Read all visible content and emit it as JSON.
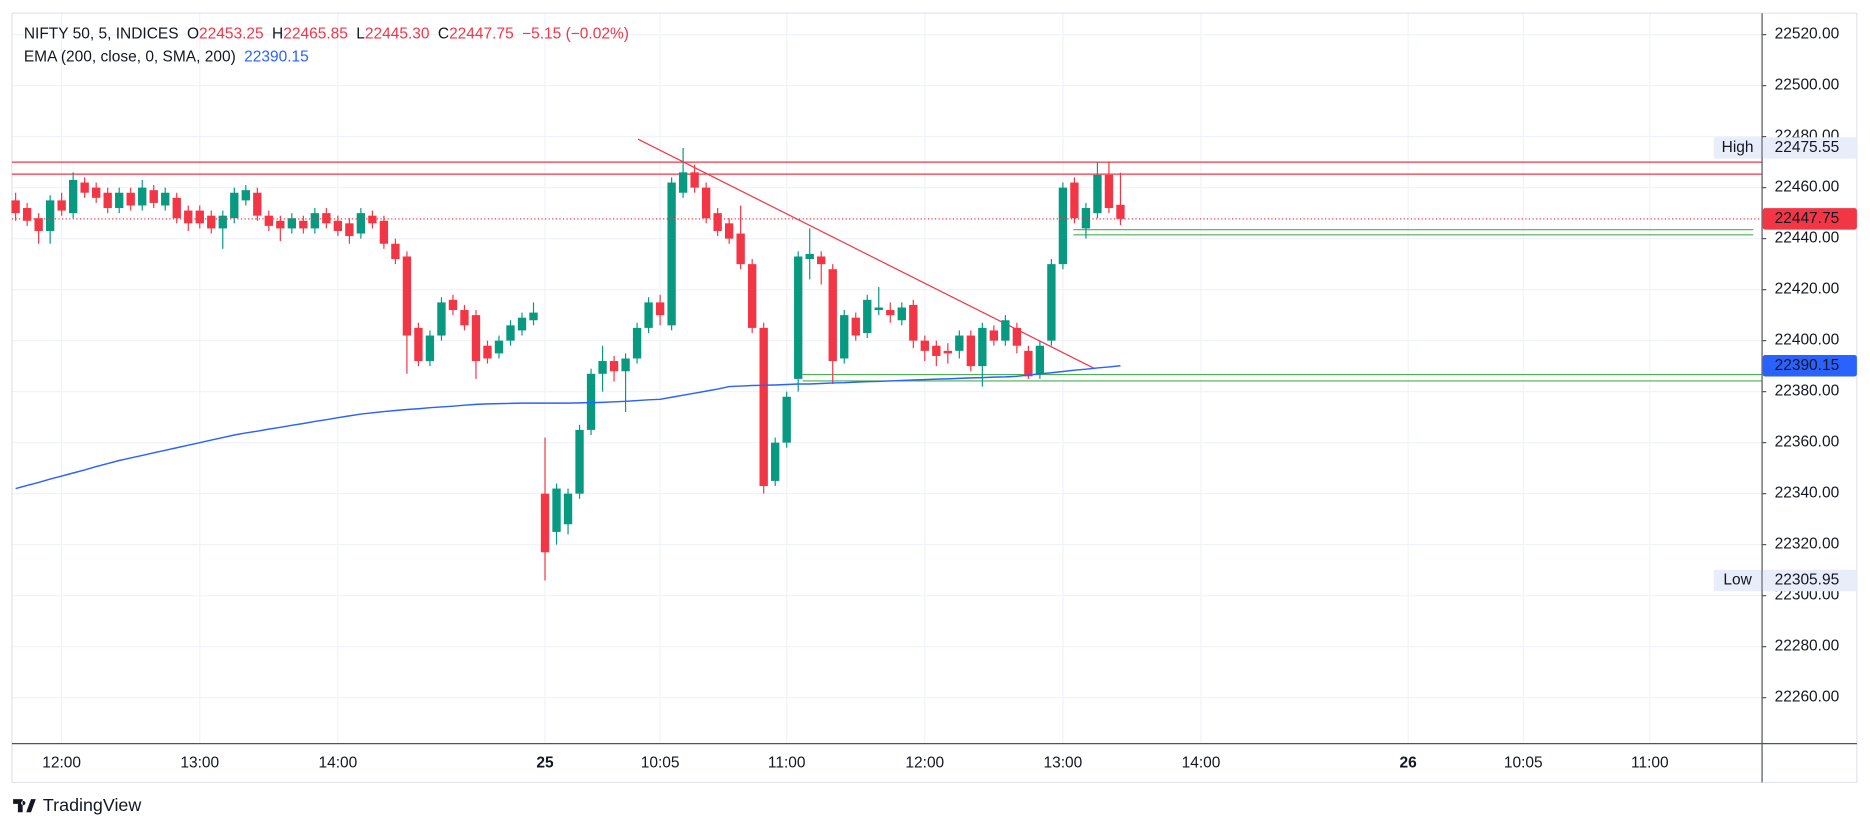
{
  "chart_data": {
    "type": "candlestick",
    "title": "NIFTY 50, 5, INDICES",
    "legend_items": [
      {
        "key": "O",
        "value": "22453.25"
      },
      {
        "key": "H",
        "value": "22465.85"
      },
      {
        "key": "L",
        "value": "22445.30"
      },
      {
        "key": "C",
        "value": "22447.75"
      }
    ],
    "change": "−5.15 (−0.02%)",
    "up_color": "#089981",
    "down_color": "#f23645",
    "categories": [
      null,
      null,
      null,
      null,
      "12:00",
      null,
      null,
      null,
      null,
      null,
      null,
      null,
      null,
      null,
      null,
      null,
      "13:00",
      null,
      null,
      null,
      null,
      null,
      null,
      null,
      null,
      null,
      null,
      null,
      "14:00",
      null,
      null,
      null,
      null,
      null,
      null,
      null,
      null,
      null,
      null,
      null,
      null,
      null,
      null,
      null,
      null,
      null,
      "25",
      null,
      null,
      null,
      null,
      null,
      null,
      null,
      null,
      null,
      "10:05",
      null,
      null,
      null,
      null,
      null,
      null,
      null,
      null,
      null,
      null,
      "11:00",
      null,
      null,
      null,
      null,
      null,
      null,
      null,
      null,
      null,
      null,
      null,
      "12:00",
      null,
      null,
      null,
      null,
      null,
      null,
      null,
      null,
      null,
      null,
      null,
      "13:00",
      null,
      null,
      null,
      null,
      null,
      null,
      null,
      null,
      null,
      null,
      null,
      "14:00",
      null,
      null,
      null,
      null,
      null,
      null,
      null,
      null,
      null,
      null,
      null,
      null,
      null,
      null,
      null,
      null,
      null,
      "26",
      null,
      null,
      null,
      null,
      null,
      null,
      null,
      null,
      null,
      "10:05",
      null,
      null,
      null,
      null,
      null,
      null,
      null,
      null,
      null,
      null,
      "11:00",
      null,
      null,
      null,
      null,
      null,
      null,
      null,
      null,
      null
    ],
    "open": [
      22455,
      22452,
      22448,
      22443,
      22455,
      22450,
      22462,
      22460,
      22458,
      22452,
      22458,
      22453,
      22459,
      22453,
      22456,
      22451,
      22451,
      22449,
      22444,
      22448,
      22455,
      22458,
      22449,
      22447,
      22444,
      22447,
      22444,
      22450,
      22447,
      22446,
      22442,
      22449,
      22447,
      22438,
      22433,
      22405,
      22392,
      22402,
      22416,
      22412,
      22410,
      22398,
      22395,
      22400,
      22404,
      22408,
      22340,
      22325,
      22328,
      22340,
      22365,
      22387,
      22392,
      22388,
      22393,
      22405,
      22415,
      22406,
      22458,
      22466,
      22460,
      22450,
      22446,
      22442,
      22430,
      22405,
      22345,
      22360,
      22385,
      22432,
      22433,
      22428,
      22393,
      22409,
      22403,
      22412,
      22412,
      22408,
      22414,
      22400,
      22398,
      22396,
      22396,
      22402,
      22390,
      22404,
      22400,
      22405,
      22396,
      22387,
      22400,
      22430,
      22462,
      22444,
      22450,
      22465,
      22453.25,
      null,
      null,
      null,
      null,
      null,
      null,
      null,
      null,
      null,
      null,
      null,
      null,
      null,
      null,
      null,
      null,
      null,
      null,
      null,
      null,
      null,
      null,
      null,
      null,
      null,
      null,
      null,
      null,
      null,
      null,
      null,
      null,
      null,
      null,
      null,
      null,
      null,
      null,
      null,
      null,
      null,
      null,
      null,
      null,
      null,
      null,
      null,
      null,
      null,
      null,
      null,
      null,
      null,
      null,
      null
    ],
    "high": [
      22458,
      22454,
      22450,
      22457,
      22458,
      22466,
      22464,
      22462,
      22460,
      22460,
      22460,
      22463,
      22461,
      22460,
      22458,
      22453,
      22453,
      22451,
      22451,
      22460,
      22461,
      22460,
      22451,
      22449,
      22450,
      22449,
      22452,
      22452,
      22449,
      22448,
      22452,
      22451,
      22449,
      22440,
      22435,
      22407,
      22404,
      22417,
      22418,
      22414,
      22412,
      22400,
      22402,
      22408,
      22411,
      22415,
      22362,
      22344,
      22342,
      22367,
      22389,
      22398,
      22394,
      22395,
      22407,
      22417,
      22418,
      22464,
      22475.55,
      22469,
      22462,
      22452,
      22448,
      22453,
      22432,
      22407,
      22362,
      22380,
      22435,
      22444,
      22435,
      22430,
      22412,
      22411,
      22418,
      22421,
      22415,
      22415,
      22416,
      22402,
      22400,
      22399,
      22404,
      22404,
      22407,
      22406,
      22410,
      22407,
      22398,
      22400,
      22432,
      22462,
      22464,
      22454,
      22470,
      22470,
      22465.85,
      null,
      null,
      null,
      null,
      null,
      null,
      null,
      null,
      null,
      null,
      null,
      null,
      null,
      null,
      null,
      null,
      null,
      null,
      null,
      null,
      null,
      null,
      null,
      null,
      null,
      null,
      null,
      null,
      null,
      null,
      null,
      null,
      null,
      null,
      null,
      null,
      null,
      null,
      null,
      null,
      null,
      null,
      null,
      null,
      null,
      null,
      null,
      null,
      null,
      null,
      null,
      null,
      null,
      null,
      null
    ],
    "low": [
      22447,
      22445,
      22438,
      22438,
      22449,
      22448,
      22456,
      22454,
      22450,
      22450,
      22451,
      22451,
      22452,
      22451,
      22446,
      22443,
      22444,
      22442,
      22436,
      22446,
      22453,
      22447,
      22443,
      22439,
      22442,
      22442,
      22442,
      22444,
      22441,
      22438,
      22440,
      22444,
      22436,
      22430,
      22387,
      22390,
      22390,
      22400,
      22410,
      22404,
      22385,
      22391,
      22393,
      22398,
      22402,
      22406,
      22305.95,
      22320,
      22324,
      22338,
      22363,
      22380,
      22384,
      22372,
      22391,
      22403,
      22406,
      22404,
      22456,
      22458,
      22446,
      22441,
      22438,
      22428,
      22403,
      22340,
      22343,
      22358,
      22380,
      22424,
      22422,
      22383,
      22391,
      22400,
      22401,
      22410,
      22407,
      22406,
      22397,
      22392,
      22390,
      22391,
      22393,
      22388,
      22382,
      22398,
      22398,
      22395,
      22385,
      22385,
      22398,
      22428,
      22446,
      22440,
      22448,
      22450,
      22445.3,
      null,
      null,
      null,
      null,
      null,
      null,
      null,
      null,
      null,
      null,
      null,
      null,
      null,
      null,
      null,
      null,
      null,
      null,
      null,
      null,
      null,
      null,
      null,
      null,
      null,
      null,
      null,
      null,
      null,
      null,
      null,
      null,
      null,
      null,
      null,
      null,
      null,
      null,
      null,
      null,
      null,
      null,
      null,
      null,
      null,
      null,
      null,
      null,
      null,
      null,
      null,
      null,
      null,
      null,
      null
    ],
    "close": [
      22450,
      22447,
      22443,
      22455,
      22451,
      22463,
      22458,
      22456,
      22452,
      22458,
      22453,
      22460,
      22454,
      22458,
      22448,
      22446,
      22446,
      22444,
      22449,
      22458,
      22459,
      22449,
      22445,
      22444,
      22448,
      22444,
      22450,
      22446,
      22443,
      22441,
      22450,
      22446,
      22438,
      22432,
      22402,
      22392,
      22402,
      22415,
      22412,
      22406,
      22392,
      22393,
      22400,
      22406,
      22409,
      22411,
      22317,
      22342,
      22340,
      22365,
      22387,
      22392,
      22388,
      22393,
      22405,
      22415,
      22410,
      22462,
      22466,
      22460,
      22448,
      22443,
      22440,
      22430,
      22405,
      22343,
      22360,
      22378,
      22433,
      22434,
      22430,
      22392,
      22410,
      22402,
      22416,
      22413,
      22410,
      22413,
      22400,
      22396,
      22394,
      22395,
      22402,
      22390,
      22405,
      22400,
      22408,
      22398,
      22386,
      22398,
      22430,
      22460,
      22448,
      22452,
      22465,
      22452,
      22447.75,
      null,
      null,
      null,
      null,
      null,
      null,
      null,
      null,
      null,
      null,
      null,
      null,
      null,
      null,
      null,
      null,
      null,
      null,
      null,
      null,
      null,
      null,
      null,
      null,
      null,
      null,
      null,
      null,
      null,
      null,
      null,
      null,
      null,
      null,
      null,
      null,
      null,
      null,
      null,
      null,
      null,
      null,
      null,
      null,
      null,
      null,
      null,
      null,
      null,
      null,
      null,
      null,
      null,
      null,
      null
    ],
    "ema": {
      "name": "EMA (200, close, 0, SMA, 200)",
      "color": "#2962ff",
      "values": [
        22342,
        22343.2,
        22344.4,
        22345.7,
        22346.9,
        22348.1,
        22349.3,
        22350.6,
        22351.8,
        22353,
        22354,
        22355,
        22356,
        22357,
        22358,
        22359,
        22360,
        22361,
        22362,
        22363,
        22363.8,
        22364.5,
        22365.3,
        22366,
        22366.8,
        22367.5,
        22368.3,
        22369,
        22369.8,
        22370.5,
        22371.2,
        22371.7,
        22372.2,
        22372.6,
        22373,
        22373.3,
        22373.7,
        22374,
        22374.3,
        22374.7,
        22375,
        22375.2,
        22375.3,
        22375.4,
        22375.5,
        22375.5,
        22375.5,
        22375.5,
        22375.5,
        22375.6,
        22375.7,
        22375.8,
        22376,
        22376.2,
        22376.5,
        22376.8,
        22377,
        22377.8,
        22378.6,
        22379.4,
        22380.2,
        22381,
        22382,
        22382.2,
        22382.4,
        22382.5,
        22382.6,
        22382.8,
        22383,
        22383,
        22383.2,
        22383.4,
        22383.5,
        22383.7,
        22383.9,
        22384,
        22384.2,
        22384.4,
        22384.6,
        22384.7,
        22384.9,
        22385,
        22385.2,
        22385.4,
        22385.5,
        22385.7,
        22385.8,
        22386,
        22386.5,
        22387,
        22387.4,
        22387.9,
        22388.4,
        22388.8,
        22389.3,
        22389.7,
        22390.15,
        null,
        null,
        null,
        null,
        null,
        null,
        null,
        null,
        null,
        null,
        null,
        null,
        null,
        null,
        null,
        null,
        null,
        null,
        null,
        null,
        null,
        null,
        null,
        null,
        null,
        null,
        null,
        null,
        null,
        null,
        null,
        null,
        null,
        null,
        null,
        null,
        null,
        null,
        null,
        null,
        null,
        null,
        null,
        null,
        null,
        null,
        null,
        null,
        null,
        null,
        null,
        null,
        null,
        null,
        null
      ]
    },
    "levels": [
      {
        "value": 22470,
        "color": "#f23645"
      },
      {
        "value": 22465.3,
        "color": "#f23645"
      },
      {
        "value": 22443.5,
        "color": "#4caf50"
      },
      {
        "value": 22441.5,
        "color": "#4caf50"
      },
      {
        "value": 22386.7,
        "color": "#4caf50"
      },
      {
        "value": 22384.2,
        "color": "#4caf50"
      }
    ],
    "trendline": {
      "color": "#f23645",
      "values": [
        22479,
        22389
      ]
    },
    "high_marker": {
      "label": "High",
      "value": 22475.55
    },
    "low_marker": {
      "label": "Low",
      "value": 22305.95
    },
    "ylim": [
      22242.2,
      22528.4
    ],
    "yticks": [
      {
        "value": 22260,
        "label": "22260.00"
      },
      {
        "value": 22280,
        "label": "22280.00"
      },
      {
        "value": 22300,
        "label": "22300.00"
      },
      {
        "value": 22320,
        "label": "22320.00"
      },
      {
        "value": 22340,
        "label": "22340.00"
      },
      {
        "value": 22360,
        "label": "22360.00"
      },
      {
        "value": 22380,
        "label": "22380.00"
      },
      {
        "value": 22400,
        "label": "22400.00"
      },
      {
        "value": 22420,
        "label": "22420.00"
      },
      {
        "value": 22440,
        "label": "22440.00"
      },
      {
        "value": 22460,
        "label": "22460.00"
      },
      {
        "value": 22480,
        "label": "22480.00"
      },
      {
        "value": 22500,
        "label": "22500.00"
      },
      {
        "value": 22520,
        "label": "22520.00"
      }
    ],
    "grid": true
  },
  "footer": "TradingView"
}
